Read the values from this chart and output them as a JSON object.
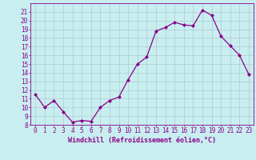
{
  "x": [
    0,
    1,
    2,
    3,
    4,
    5,
    6,
    7,
    8,
    9,
    10,
    11,
    12,
    13,
    14,
    15,
    16,
    17,
    18,
    19,
    20,
    21,
    22,
    23
  ],
  "y": [
    11.5,
    10.0,
    10.8,
    9.5,
    8.3,
    8.5,
    8.4,
    10.0,
    10.8,
    11.2,
    13.2,
    15.0,
    15.8,
    18.8,
    19.2,
    19.8,
    19.5,
    19.4,
    21.2,
    20.6,
    18.2,
    17.1,
    16.0,
    13.8
  ],
  "xlabel": "Windchill (Refroidissement éolien,°C)",
  "ylim": [
    8,
    22
  ],
  "xlim_min": -0.5,
  "xlim_max": 23.5,
  "yticks": [
    8,
    9,
    10,
    11,
    12,
    13,
    14,
    15,
    16,
    17,
    18,
    19,
    20,
    21
  ],
  "xticks": [
    0,
    1,
    2,
    3,
    4,
    5,
    6,
    7,
    8,
    9,
    10,
    11,
    12,
    13,
    14,
    15,
    16,
    17,
    18,
    19,
    20,
    21,
    22,
    23
  ],
  "line_color": "#8B008B",
  "marker_color": "#8B008B",
  "bg_color": "#c8eef0",
  "grid_color": "#b0c8d0",
  "xlabel_fontsize": 6.0,
  "tick_fontsize": 5.5
}
